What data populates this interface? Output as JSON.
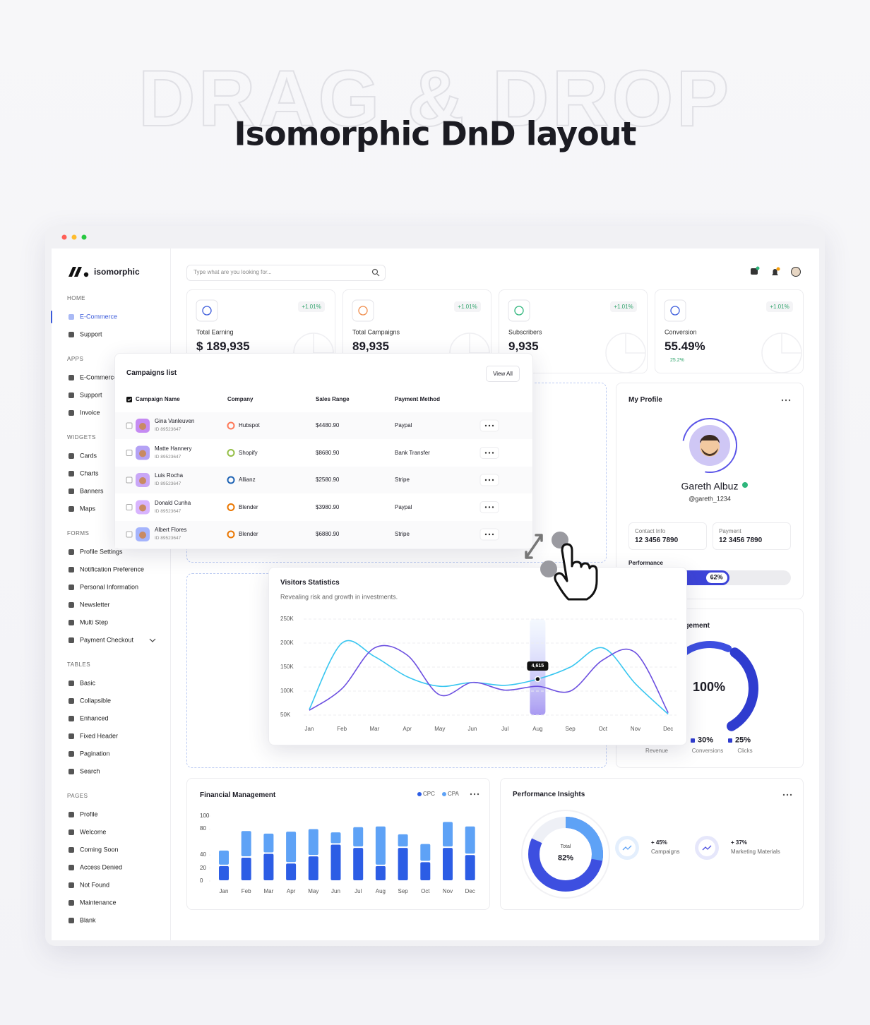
{
  "hero": {
    "watermark": "DRAG & DROP",
    "title": "Isomorphic DnD layout"
  },
  "sidebar": {
    "brand": "isomorphic",
    "sections": [
      {
        "title": "HOME",
        "items": [
          "E-Commerce",
          "Support"
        ]
      },
      {
        "title": "APPS",
        "items": [
          "E-Commerce",
          "Support",
          "Invoice"
        ]
      },
      {
        "title": "WIDGETS",
        "items": [
          "Cards",
          "Charts",
          "Banners",
          "Maps"
        ]
      },
      {
        "title": "FORMS",
        "items": [
          "Profile Settings",
          "Notification Preference",
          "Personal Information",
          "Newsletter",
          "Multi Step",
          "Payment Checkout"
        ]
      },
      {
        "title": "TABLES",
        "items": [
          "Basic",
          "Collapsible",
          "Enhanced",
          "Fixed Header",
          "Pagination",
          "Search"
        ]
      },
      {
        "title": "PAGES",
        "items": [
          "Profile",
          "Welcome",
          "Coming Soon",
          "Access Denied",
          "Not Found",
          "Maintenance",
          "Blank"
        ]
      }
    ]
  },
  "search": {
    "placeholder": "Type what are you looking for..."
  },
  "stats": [
    {
      "label": "Total Earning",
      "value": "$ 189,935",
      "change": "+1.01%"
    },
    {
      "label": "Total Campaigns",
      "value": "89,935",
      "change": "+1.01%"
    },
    {
      "label": "Subscribers",
      "value": "9,935",
      "change": "+1.01%"
    },
    {
      "label": "Conversion",
      "value": "55.49%",
      "change": "+1.01%",
      "trend": "25.2%"
    }
  ],
  "campaigns": {
    "title": "Campaigns list",
    "view_all": "View All",
    "columns": [
      "Campaign Name",
      "Company",
      "Sales Range",
      "Payment Method"
    ],
    "rows": [
      {
        "name": "Gina Vanleuven",
        "id": "ID 89523647",
        "company": "Hubspot",
        "sales": "$4480.90",
        "method": "Paypal"
      },
      {
        "name": "Matte Hannery",
        "id": "ID 89523647",
        "company": "Shopify",
        "sales": "$8680.90",
        "method": "Bank Transfer"
      },
      {
        "name": "Luis Rocha",
        "id": "ID 89523647",
        "company": "Allianz",
        "sales": "$2580.90",
        "method": "Stripe"
      },
      {
        "name": "Donald Cunha",
        "id": "ID 89523647",
        "company": "Blender",
        "sales": "$3980.90",
        "method": "Paypal"
      },
      {
        "name": "Albert Flores",
        "id": "ID 89523647",
        "company": "Blender",
        "sales": "$6880.90",
        "method": "Stripe"
      }
    ]
  },
  "profile": {
    "title": "My Profile",
    "name": "Gareth Albuz",
    "handle": "@gareth_1234",
    "contacts": [
      {
        "label": "Contact Info",
        "value": "12 3456 7890"
      },
      {
        "label": "Payment",
        "value": "12 3456 7890"
      }
    ],
    "performance": {
      "label": "Performance",
      "percent": 62,
      "percent_label": "62%"
    }
  },
  "engagement": {
    "title": "Engagement",
    "percent": 100,
    "percent_label": "100%",
    "legend": [
      {
        "name": "Revenue"
      },
      {
        "name": "Conversions",
        "value": "30%"
      },
      {
        "name": "Clicks",
        "value": "25%"
      }
    ]
  },
  "insights": {
    "title": "Performance Insights",
    "total_label": "Total",
    "percent": 82,
    "percent_label": "82%",
    "items": [
      {
        "value": "+ 45%",
        "label": "Campaigns"
      },
      {
        "value": "+ 37%",
        "label": "Marketing Materials"
      }
    ]
  },
  "chart_data": [
    {
      "type": "line",
      "title": "Visitors Statistics",
      "subtitle": "Revealing risk and growth in investments.",
      "categories": [
        "Jan",
        "Feb",
        "Mar",
        "Apr",
        "May",
        "Jun",
        "Jul",
        "Aug",
        "Sep",
        "Oct",
        "Nov",
        "Dec"
      ],
      "series": [
        {
          "color": "#38c6f0",
          "values": [
            62,
            200,
            172,
            130,
            110,
            118,
            112,
            125,
            150,
            190,
            115,
            52
          ]
        },
        {
          "color": "#6c4fe0",
          "values": [
            60,
            105,
            190,
            175,
            92,
            118,
            102,
            110,
            100,
            165,
            180,
            55
          ]
        }
      ],
      "ylim": [
        50,
        250
      ],
      "yticks": [
        {
          "value": 50,
          "label": "50K"
        },
        {
          "value": 100,
          "label": "100K"
        },
        {
          "value": 150,
          "label": "150K"
        },
        {
          "value": 200,
          "label": "200K"
        },
        {
          "value": 250,
          "label": "250K"
        }
      ],
      "annotation": "4,615",
      "grid": true
    },
    {
      "type": "bar",
      "stacked": true,
      "title": "Financial Management",
      "categories": [
        "Jan",
        "Feb",
        "Mar",
        "Apr",
        "May",
        "Jun",
        "Jul",
        "Aug",
        "Sep",
        "Oct",
        "Nov",
        "Dec"
      ],
      "series": [
        {
          "name": "CPC",
          "color": "#2c5de5",
          "values": [
            24,
            37,
            43,
            28,
            39,
            57,
            52,
            24,
            52,
            30,
            52,
            41
          ]
        },
        {
          "name": "CPA",
          "color": "#5ea2f6",
          "values": [
            24,
            41,
            31,
            49,
            42,
            19,
            32,
            61,
            21,
            28,
            40,
            44
          ]
        }
      ],
      "ylim": [
        0,
        100
      ],
      "yticks": [
        0,
        20,
        40,
        80,
        100
      ]
    }
  ]
}
